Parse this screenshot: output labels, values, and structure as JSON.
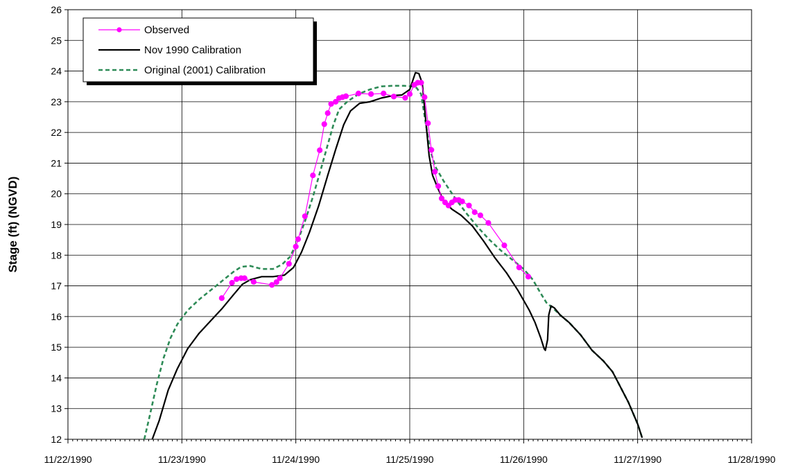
{
  "chart_data": {
    "type": "line",
    "title": "",
    "xlabel": "",
    "ylabel": "Stage (ft) (NGVD)",
    "xlim": [
      "11/22/1990",
      "11/28/1990"
    ],
    "ylim": [
      12,
      26
    ],
    "x_ticks": [
      "11/22/1990",
      "11/23/1990",
      "11/24/1990",
      "11/25/1990",
      "11/26/1990",
      "11/27/1990",
      "11/28/1990"
    ],
    "y_ticks": [
      12,
      13,
      14,
      15,
      16,
      17,
      18,
      19,
      20,
      21,
      22,
      23,
      24,
      25,
      26
    ],
    "grid": true,
    "legend_position": "top-left",
    "series": [
      {
        "name": "Observed",
        "color": "#ff00ff",
        "marker": "circle",
        "line_style": "solid",
        "x_unit": "days from 11/22/1990 00:00",
        "points": [
          [
            1.35,
            16.6
          ],
          [
            1.44,
            17.1
          ],
          [
            1.48,
            17.22
          ],
          [
            1.52,
            17.25
          ],
          [
            1.55,
            17.25
          ],
          [
            1.63,
            17.13
          ],
          [
            1.79,
            17.03
          ],
          [
            1.83,
            17.12
          ],
          [
            1.86,
            17.25
          ],
          [
            1.94,
            17.72
          ],
          [
            2.0,
            18.28
          ],
          [
            2.02,
            18.52
          ],
          [
            2.08,
            19.27
          ],
          [
            2.15,
            20.6
          ],
          [
            2.21,
            21.42
          ],
          [
            2.25,
            22.27
          ],
          [
            2.28,
            22.63
          ],
          [
            2.31,
            22.93
          ],
          [
            2.35,
            23.0
          ],
          [
            2.38,
            23.12
          ],
          [
            2.41,
            23.15
          ],
          [
            2.44,
            23.18
          ],
          [
            2.55,
            23.27
          ],
          [
            2.66,
            23.25
          ],
          [
            2.77,
            23.27
          ],
          [
            2.86,
            23.17
          ],
          [
            2.96,
            23.13
          ],
          [
            3.0,
            23.25
          ],
          [
            3.04,
            23.55
          ],
          [
            3.07,
            23.62
          ],
          [
            3.1,
            23.62
          ],
          [
            3.13,
            23.15
          ],
          [
            3.16,
            22.3
          ],
          [
            3.19,
            21.43
          ],
          [
            3.22,
            20.72
          ],
          [
            3.25,
            20.25
          ],
          [
            3.28,
            19.85
          ],
          [
            3.31,
            19.72
          ],
          [
            3.34,
            19.62
          ],
          [
            3.37,
            19.72
          ],
          [
            3.4,
            19.8
          ],
          [
            3.43,
            19.8
          ],
          [
            3.46,
            19.75
          ],
          [
            3.52,
            19.62
          ],
          [
            3.57,
            19.4
          ],
          [
            3.62,
            19.3
          ],
          [
            3.69,
            19.05
          ],
          [
            3.83,
            18.32
          ],
          [
            3.96,
            17.6
          ],
          [
            4.04,
            17.3
          ]
        ]
      },
      {
        "name": "Nov 1990 Calibration",
        "color": "#000000",
        "marker": "none",
        "line_style": "solid",
        "x_unit": "days from 11/22/1990 00:00",
        "points": [
          [
            0.74,
            12.0
          ],
          [
            0.8,
            12.6
          ],
          [
            0.88,
            13.6
          ],
          [
            0.96,
            14.3
          ],
          [
            1.05,
            14.95
          ],
          [
            1.15,
            15.45
          ],
          [
            1.25,
            15.85
          ],
          [
            1.35,
            16.25
          ],
          [
            1.45,
            16.7
          ],
          [
            1.53,
            17.05
          ],
          [
            1.6,
            17.2
          ],
          [
            1.7,
            17.3
          ],
          [
            1.8,
            17.3
          ],
          [
            1.9,
            17.35
          ],
          [
            1.98,
            17.6
          ],
          [
            2.05,
            18.1
          ],
          [
            2.12,
            18.75
          ],
          [
            2.2,
            19.6
          ],
          [
            2.28,
            20.6
          ],
          [
            2.35,
            21.45
          ],
          [
            2.42,
            22.25
          ],
          [
            2.48,
            22.7
          ],
          [
            2.56,
            22.95
          ],
          [
            2.65,
            23.0
          ],
          [
            2.75,
            23.12
          ],
          [
            2.85,
            23.2
          ],
          [
            2.93,
            23.22
          ],
          [
            3.0,
            23.4
          ],
          [
            3.05,
            23.95
          ],
          [
            3.08,
            23.92
          ],
          [
            3.11,
            23.6
          ],
          [
            3.14,
            22.4
          ],
          [
            3.17,
            21.25
          ],
          [
            3.2,
            20.6
          ],
          [
            3.25,
            20.15
          ],
          [
            3.3,
            19.75
          ],
          [
            3.37,
            19.5
          ],
          [
            3.45,
            19.3
          ],
          [
            3.55,
            18.95
          ],
          [
            3.65,
            18.45
          ],
          [
            3.75,
            17.9
          ],
          [
            3.85,
            17.42
          ],
          [
            3.95,
            16.85
          ],
          [
            4.05,
            16.2
          ],
          [
            4.1,
            15.8
          ],
          [
            4.15,
            15.3
          ],
          [
            4.18,
            14.95
          ],
          [
            4.19,
            14.9
          ],
          [
            4.21,
            15.25
          ],
          [
            4.22,
            16.05
          ],
          [
            4.24,
            16.35
          ],
          [
            4.27,
            16.28
          ],
          [
            4.32,
            16.05
          ],
          [
            4.4,
            15.8
          ],
          [
            4.5,
            15.4
          ],
          [
            4.6,
            14.9
          ],
          [
            4.7,
            14.55
          ],
          [
            4.78,
            14.2
          ],
          [
            4.85,
            13.7
          ],
          [
            4.92,
            13.2
          ],
          [
            5.0,
            12.5
          ],
          [
            5.04,
            12.05
          ]
        ]
      },
      {
        "name": "Original (2001) Calibration",
        "color": "#2e8b57",
        "marker": "none",
        "line_style": "dashed",
        "x_unit": "days from 11/22/1990 00:00",
        "points": [
          [
            0.67,
            12.0
          ],
          [
            0.72,
            12.8
          ],
          [
            0.78,
            13.8
          ],
          [
            0.84,
            14.65
          ],
          [
            0.9,
            15.3
          ],
          [
            0.96,
            15.75
          ],
          [
            1.05,
            16.2
          ],
          [
            1.15,
            16.55
          ],
          [
            1.25,
            16.85
          ],
          [
            1.35,
            17.15
          ],
          [
            1.45,
            17.45
          ],
          [
            1.52,
            17.62
          ],
          [
            1.6,
            17.65
          ],
          [
            1.7,
            17.55
          ],
          [
            1.8,
            17.55
          ],
          [
            1.88,
            17.7
          ],
          [
            1.95,
            17.95
          ],
          [
            2.02,
            18.5
          ],
          [
            2.08,
            19.1
          ],
          [
            2.15,
            19.9
          ],
          [
            2.22,
            20.8
          ],
          [
            2.28,
            21.6
          ],
          [
            2.33,
            22.25
          ],
          [
            2.38,
            22.75
          ],
          [
            2.45,
            23.0
          ],
          [
            2.55,
            23.25
          ],
          [
            2.65,
            23.4
          ],
          [
            2.75,
            23.5
          ],
          [
            2.85,
            23.52
          ],
          [
            2.95,
            23.52
          ],
          [
            3.02,
            23.5
          ],
          [
            3.06,
            23.45
          ],
          [
            3.1,
            23.25
          ],
          [
            3.14,
            22.3
          ],
          [
            3.18,
            21.4
          ],
          [
            3.23,
            20.85
          ],
          [
            3.3,
            20.4
          ],
          [
            3.4,
            19.85
          ],
          [
            3.5,
            19.35
          ],
          [
            3.6,
            18.9
          ],
          [
            3.7,
            18.5
          ],
          [
            3.8,
            18.15
          ],
          [
            3.9,
            17.85
          ],
          [
            4.0,
            17.55
          ],
          [
            4.08,
            17.2
          ],
          [
            4.15,
            16.75
          ],
          [
            4.2,
            16.45
          ],
          [
            4.25,
            16.3
          ],
          [
            4.32,
            16.05
          ],
          [
            4.4,
            15.8
          ],
          [
            4.5,
            15.4
          ],
          [
            4.6,
            14.9
          ],
          [
            4.7,
            14.55
          ],
          [
            4.78,
            14.2
          ],
          [
            4.85,
            13.7
          ],
          [
            4.92,
            13.2
          ],
          [
            5.0,
            12.5
          ],
          [
            5.04,
            12.05
          ]
        ]
      }
    ]
  }
}
